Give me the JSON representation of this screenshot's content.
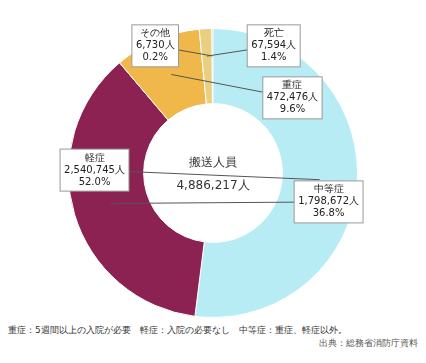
{
  "chart_data": {
    "type": "doughnut",
    "center_text": "搬送人員",
    "total": {
      "value": 4886217,
      "label": "4,886,217人"
    },
    "categories": [
      "その他",
      "軽症",
      "中等症",
      "重症",
      "死亡"
    ],
    "values": [
      6730,
      2540745,
      1798672,
      472476,
      67594
    ],
    "value_labels": [
      "6,730人",
      "2,540,745人",
      "1,798,672人",
      "472,476人",
      "67,594人"
    ],
    "shares": [
      0.2,
      52.0,
      36.8,
      9.6,
      1.4
    ],
    "share_labels": [
      "0.2%",
      "52.0%",
      "36.8%",
      "9.6%",
      "1.4%"
    ],
    "colors": [
      "#8080cc",
      "#b8ecf5",
      "#8b2252",
      "#f0b84a",
      "#e8d080"
    ],
    "footnote": "重症：5週間以上の入院が必要　軽症：入院の必要なし　中等症：重症、軽症以外。",
    "source": "出典：総務省消防庁資料",
    "legend": false
  }
}
